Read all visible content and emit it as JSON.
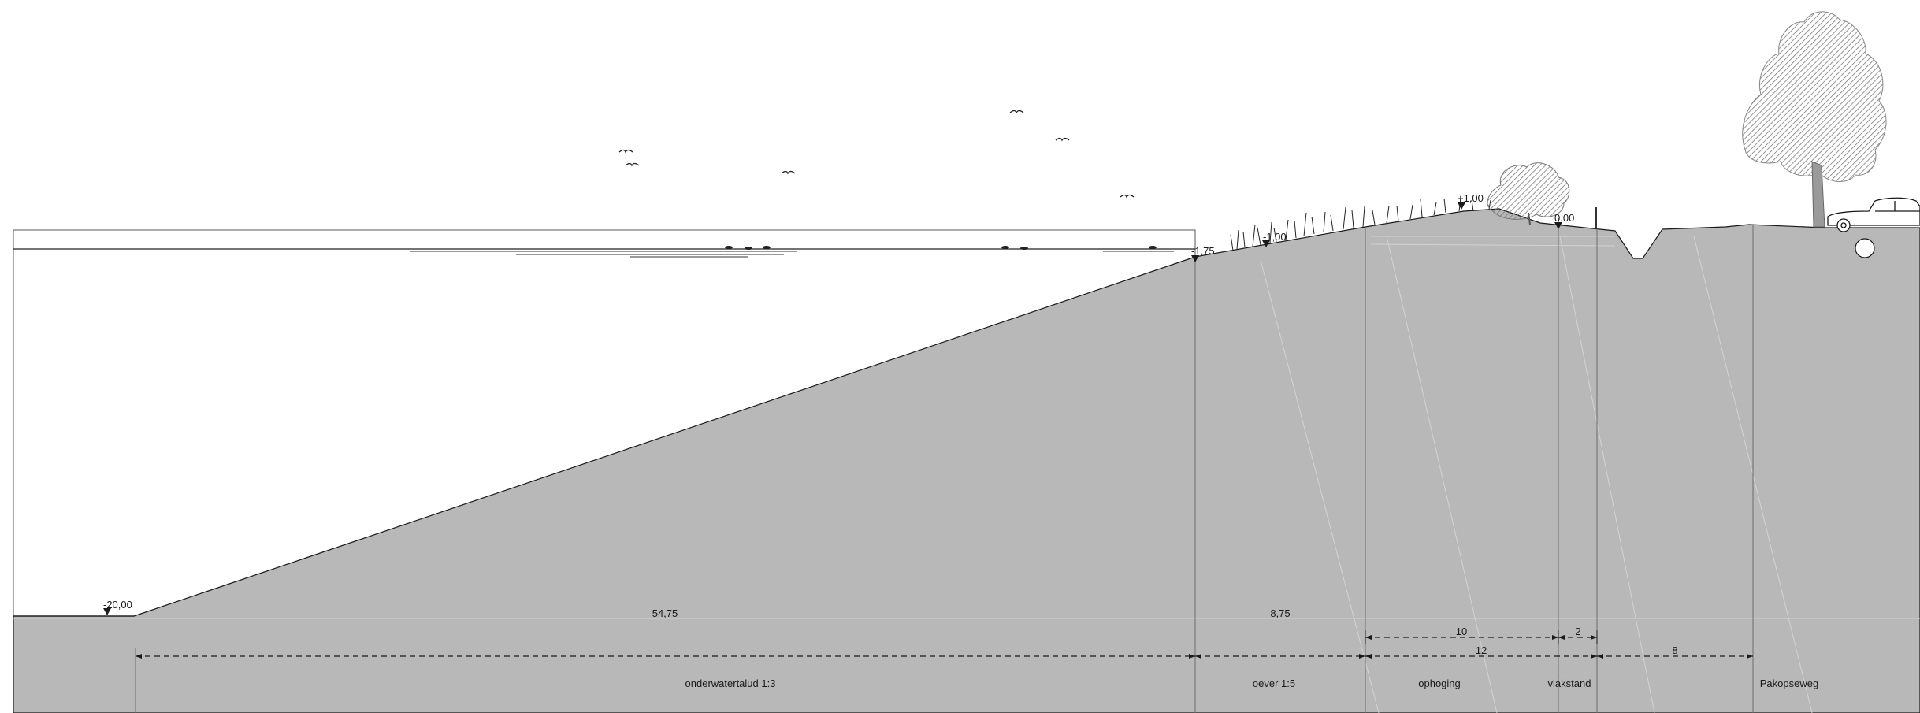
{
  "levels": {
    "bottom": "-20,00",
    "underwater_toe": "-1,75",
    "bank_mid": "-1,00",
    "raised_top": "+1,00",
    "flat": "0,00"
  },
  "dimensions": {
    "underwater_slope": "54,75",
    "bank": "8,75",
    "raise": "10",
    "flat_edge": "2",
    "raise_total": "12",
    "road": "8"
  },
  "zones": {
    "underwater_slope": "onderwatertalud 1:3",
    "bank": "oever 1:5",
    "raise": "ophoging",
    "flat_edge": "vlakstand",
    "road": "Pakopseweg"
  },
  "colors": {
    "ground": "#b8b8b8",
    "line": "#1a1a1a",
    "tree": "#8c8c8c"
  }
}
